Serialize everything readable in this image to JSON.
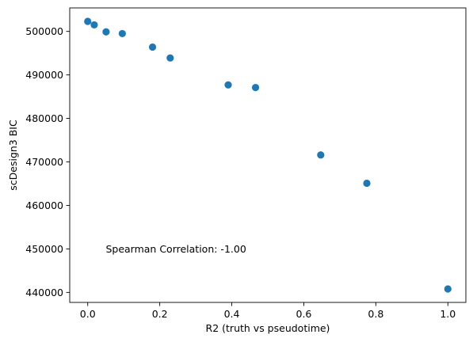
{
  "chart_data": {
    "type": "scatter",
    "xlabel": "R2 (truth vs pseudotime)",
    "ylabel": "scDesign3 BIC",
    "x": [
      0.0,
      0.018,
      0.051,
      0.096,
      0.18,
      0.229,
      0.39,
      0.466,
      0.647,
      0.775,
      1.0
    ],
    "y": [
      502300,
      501500,
      499900,
      499500,
      496400,
      493900,
      487700,
      487100,
      471600,
      465100,
      440800
    ],
    "xlim": [
      -0.05,
      1.05
    ],
    "ylim": [
      437700,
      505400
    ],
    "xticks": [
      0.0,
      0.2,
      0.4,
      0.6,
      0.8,
      1.0
    ],
    "xtick_labels": [
      "0.0",
      "0.2",
      "0.4",
      "0.6",
      "0.8",
      "1.0"
    ],
    "yticks": [
      440000,
      450000,
      460000,
      470000,
      480000,
      490000,
      500000
    ],
    "ytick_labels": [
      "440000",
      "450000",
      "460000",
      "470000",
      "480000",
      "490000",
      "500000"
    ],
    "grid": false,
    "marker_color": "#1f77b4",
    "annotation": {
      "text": "Spearman Correlation: -1.00",
      "x": 0.05,
      "y": 450000
    }
  }
}
